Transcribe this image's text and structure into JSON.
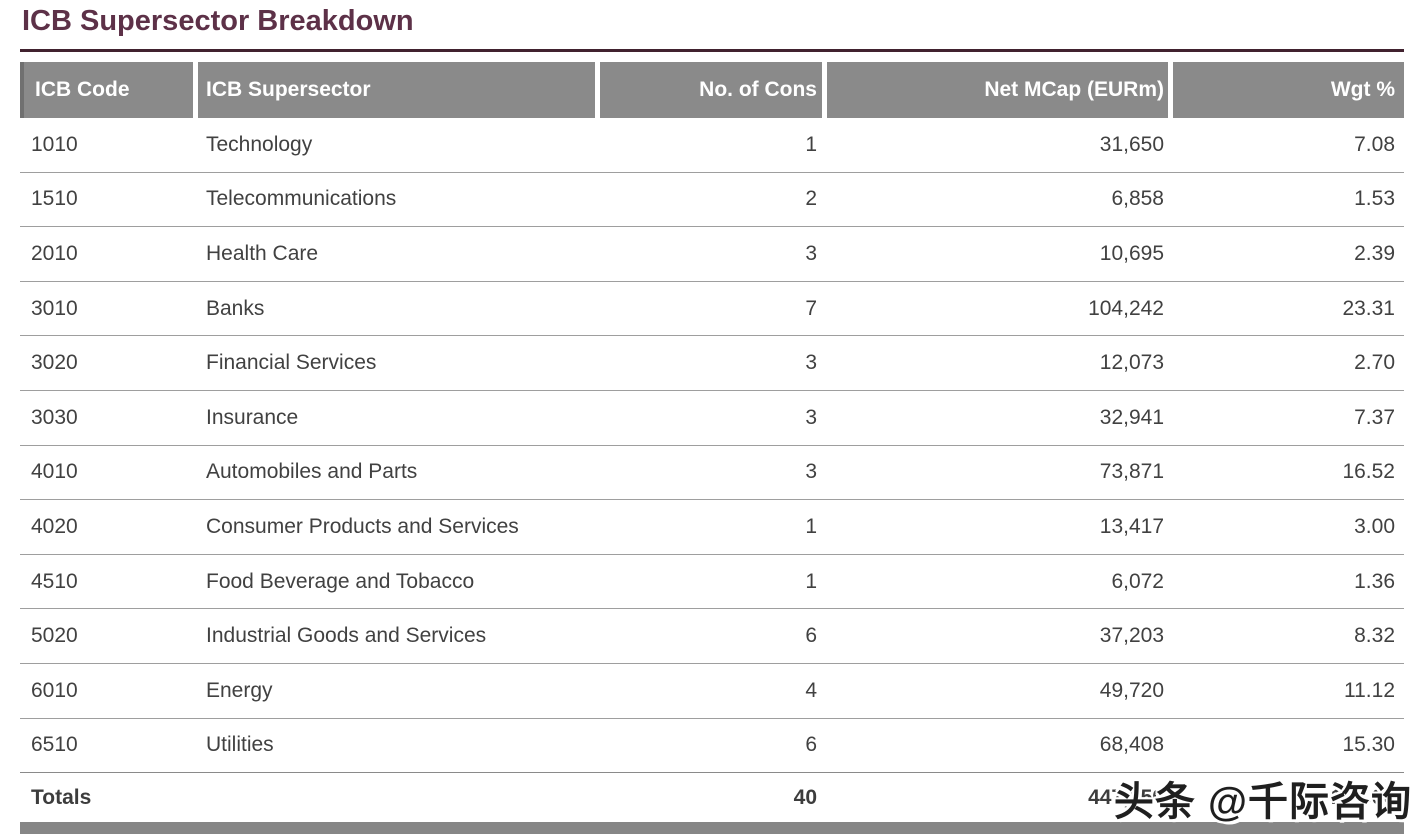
{
  "page": {
    "title": "ICB Supersector Breakdown"
  },
  "table": {
    "columns": [
      {
        "label": "ICB Code",
        "align": "left"
      },
      {
        "label": "ICB Supersector",
        "align": "left"
      },
      {
        "label": "No. of Cons",
        "align": "right"
      },
      {
        "label": "Net MCap (EURm)",
        "align": "right"
      },
      {
        "label": "Wgt %",
        "align": "right"
      }
    ],
    "rows": [
      [
        "1010",
        "Technology",
        "1",
        "31,650",
        "7.08"
      ],
      [
        "1510",
        "Telecommunications",
        "2",
        "6,858",
        "1.53"
      ],
      [
        "2010",
        "Health Care",
        "3",
        "10,695",
        "2.39"
      ],
      [
        "3010",
        "Banks",
        "7",
        "104,242",
        "23.31"
      ],
      [
        "3020",
        "Financial Services",
        "3",
        "12,073",
        "2.70"
      ],
      [
        "3030",
        "Insurance",
        "3",
        "32,941",
        "7.37"
      ],
      [
        "4010",
        "Automobiles and Parts",
        "3",
        "73,871",
        "16.52"
      ],
      [
        "4020",
        "Consumer Products and Services",
        "1",
        "13,417",
        "3.00"
      ],
      [
        "4510",
        "Food Beverage and Tobacco",
        "1",
        "6,072",
        "1.36"
      ],
      [
        "5020",
        "Industrial Goods and Services",
        "6",
        "37,203",
        "8.32"
      ],
      [
        "6010",
        "Energy",
        "4",
        "49,720",
        "11.12"
      ],
      [
        "6510",
        "Utilities",
        "6",
        "68,408",
        "15.30"
      ]
    ],
    "totals": {
      "label": "Totals",
      "cons": "40",
      "net_mcap": "447,150",
      "wgt_pct": "100.00"
    }
  },
  "watermark": {
    "text": "头条 @千际咨询"
  },
  "colors": {
    "title": "#5d3148",
    "title_rule": "#41222f",
    "header_bg": "#8a8a8a",
    "header_text": "#ffffff",
    "body_text": "#414141",
    "row_line": "#9e9e9e",
    "bottom_bar": "#868686"
  }
}
